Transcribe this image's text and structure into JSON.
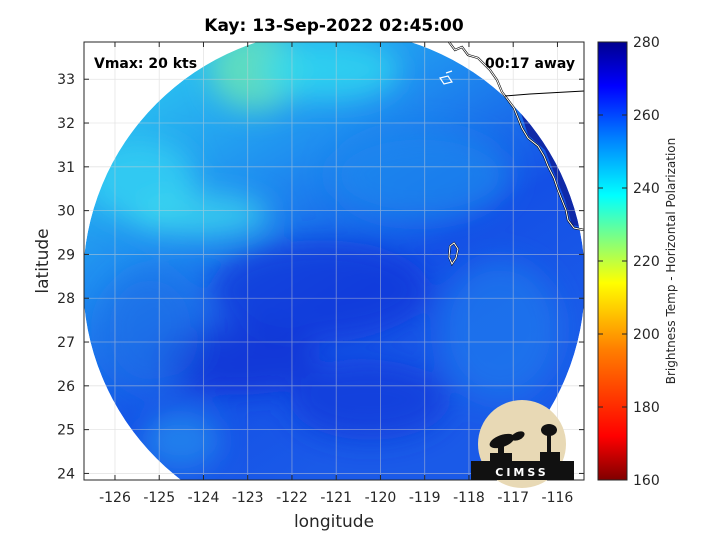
{
  "title": "Kay: 13-Sep-2022 02:45:00",
  "annotations": {
    "vmax": "Vmax: 20 kts",
    "time_away": "00:17 away"
  },
  "axes": {
    "xlabel": "longitude",
    "ylabel": "latitude",
    "xlim": [
      -126.7,
      -115.4
    ],
    "ylim": [
      23.85,
      33.85
    ],
    "xticks": [
      -126,
      -125,
      -124,
      -123,
      -122,
      -121,
      -120,
      -119,
      -118,
      -117,
      -116
    ],
    "yticks": [
      24,
      25,
      26,
      27,
      28,
      29,
      30,
      31,
      32,
      33
    ],
    "grid": true
  },
  "colorbar": {
    "label": "Brightness Temp - Horizontal Polarization",
    "range": [
      160,
      280
    ],
    "ticks": [
      160,
      180,
      200,
      220,
      240,
      260,
      280
    ],
    "colormap": "jet",
    "colors": [
      "#800000",
      "#ff0000",
      "#ff8000",
      "#ffff00",
      "#80ff80",
      "#00ffff",
      "#0080ff",
      "#0000ff",
      "#00008f"
    ]
  },
  "swath": {
    "shape": "circle",
    "center_lon": -121.3,
    "center_lat": 28.85,
    "dominant_values_K": [
      245,
      262
    ]
  },
  "logo": {
    "text": "CIMSS"
  }
}
